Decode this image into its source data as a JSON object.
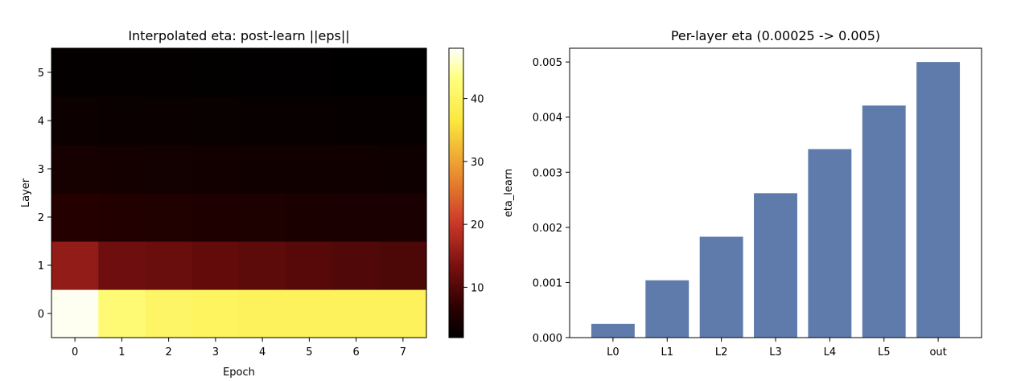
{
  "chart_data": [
    {
      "type": "heatmap",
      "title": "Interpolated eta: post-learn ||eps||",
      "xlabel": "Epoch",
      "ylabel": "Layer",
      "x": [
        0,
        1,
        2,
        3,
        4,
        5,
        6,
        7
      ],
      "y": [
        0,
        1,
        2,
        3,
        4,
        5
      ],
      "origin": "lower",
      "colormap": "hot",
      "values": [
        [
          47.5,
          42.0,
          40.5,
          40.0,
          39.5,
          39.5,
          39.5,
          39.5
        ],
        [
          15.5,
          12.5,
          12.0,
          11.5,
          11.0,
          10.5,
          10.0,
          9.5
        ],
        [
          6.0,
          5.8,
          5.6,
          5.4,
          5.2,
          5.0,
          4.9,
          4.8
        ],
        [
          4.5,
          4.3,
          4.1,
          4.0,
          3.9,
          3.8,
          3.7,
          3.6
        ],
        [
          3.3,
          3.2,
          3.1,
          3.0,
          2.9,
          2.9,
          2.8,
          2.8
        ],
        [
          2.6,
          2.5,
          2.4,
          2.3,
          2.2,
          2.2,
          2.1,
          2.1
        ]
      ],
      "colorbar": {
        "range": [
          2.0,
          48.0
        ],
        "ticks": [
          10,
          20,
          30,
          40
        ]
      },
      "grid": false
    },
    {
      "type": "bar",
      "title": "Per-layer eta (0.00025 -> 0.005)",
      "xlabel": "",
      "ylabel": "eta_learn",
      "categories": [
        "L0",
        "L1",
        "L2",
        "L3",
        "L4",
        "L5",
        "out"
      ],
      "values": [
        0.00025,
        0.00104,
        0.00183,
        0.00262,
        0.00342,
        0.00421,
        0.005
      ],
      "ylim": [
        0,
        0.00525
      ],
      "yticks": [
        "0.000",
        "0.001",
        "0.002",
        "0.003",
        "0.004",
        "0.005"
      ],
      "bar_color": "#5e7bab",
      "grid": false
    }
  ]
}
